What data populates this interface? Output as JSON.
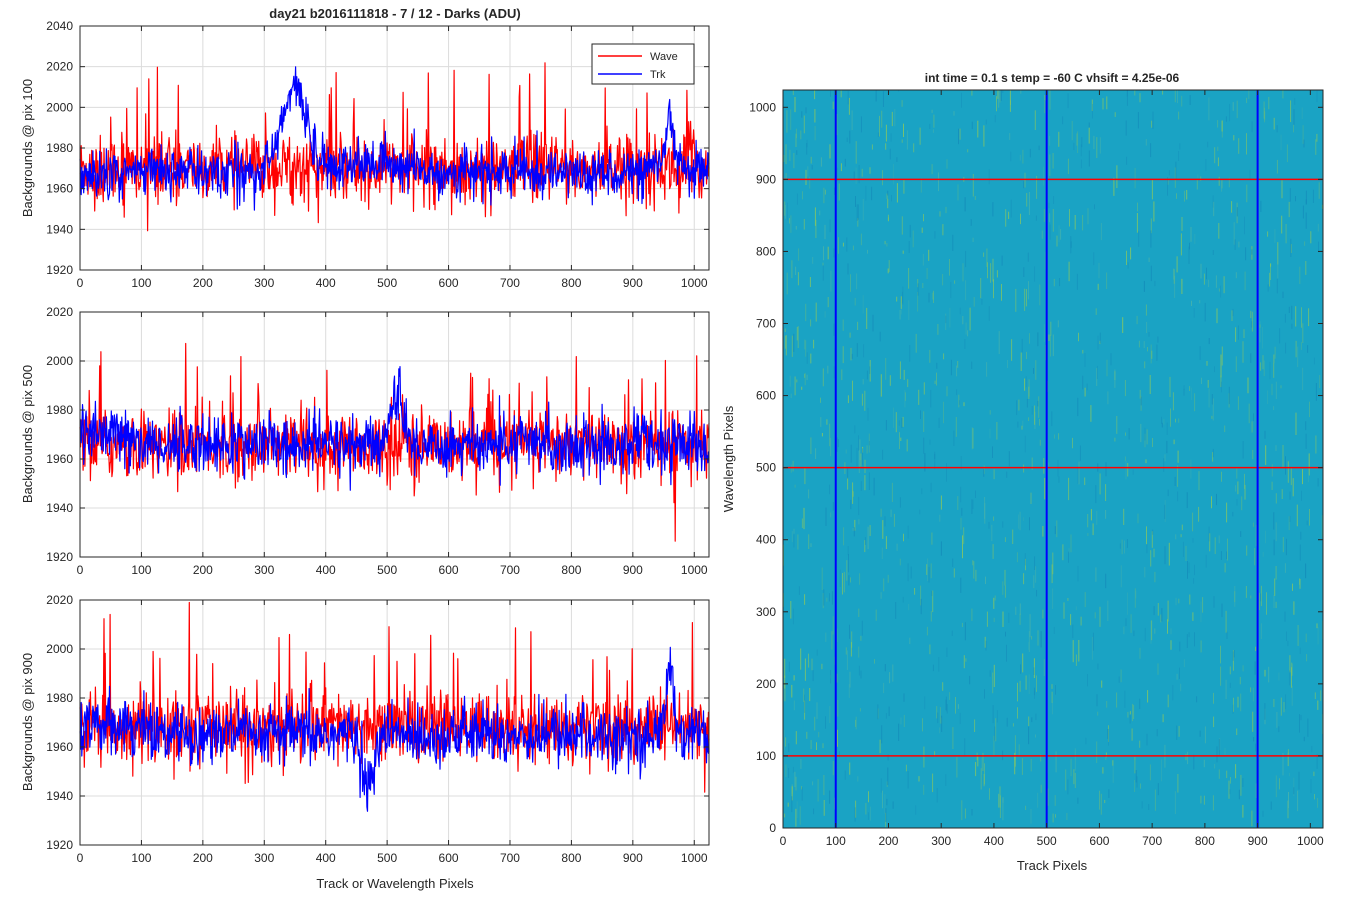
{
  "figure": {
    "title": "day21 b2016111818 - 7 / 12 - Darks (ADU)"
  },
  "chart_data": [
    {
      "type": "line",
      "title": "day21 b2016111818 - 7 / 12 - Darks (ADU)",
      "xlabel": "",
      "ylabel": "Backgrounds @ pix 100",
      "xlim": [
        0,
        1024
      ],
      "ylim": [
        1920,
        2040
      ],
      "xticks": [
        0,
        100,
        200,
        300,
        400,
        500,
        600,
        700,
        800,
        900,
        1000
      ],
      "yticks": [
        1920,
        1940,
        1960,
        1980,
        2000,
        2020,
        2040
      ],
      "grid": true,
      "legend": "top-right",
      "series": [
        {
          "name": "Wave",
          "color": "#ff0000",
          "mean": 1970,
          "sigma": 8,
          "spike_rate": 0.05,
          "spike_max": 45,
          "neg_rate": 0.02,
          "neg_max": 30,
          "bumps": []
        },
        {
          "name": "Trk",
          "color": "#0000ff",
          "mean": 1968,
          "sigma": 6,
          "spike_rate": 0.01,
          "spike_max": 10,
          "neg_rate": 0.01,
          "neg_max": 12,
          "bumps": [
            [
              350,
              30,
              40
            ],
            [
              960,
              10,
              28
            ],
            [
              480,
              60,
              4
            ]
          ]
        }
      ]
    },
    {
      "type": "line",
      "title": "",
      "xlabel": "",
      "ylabel": "Backgrounds @ pix 500",
      "xlim": [
        0,
        1024
      ],
      "ylim": [
        1920,
        2020
      ],
      "xticks": [
        0,
        100,
        200,
        300,
        400,
        500,
        600,
        700,
        800,
        900,
        1000
      ],
      "yticks": [
        1920,
        1940,
        1960,
        1980,
        2000,
        2020
      ],
      "grid": true,
      "legend": "none",
      "series": [
        {
          "name": "Wave",
          "color": "#ff0000",
          "mean": 1966,
          "sigma": 7,
          "spike_rate": 0.04,
          "spike_max": 35,
          "neg_rate": 0.02,
          "neg_max": 25,
          "bumps": []
        },
        {
          "name": "Trk",
          "color": "#0000ff",
          "mean": 1966,
          "sigma": 6,
          "spike_rate": 0.01,
          "spike_max": 12,
          "neg_rate": 0.01,
          "neg_max": 12,
          "bumps": [
            [
              515,
              14,
              18
            ],
            [
              40,
              40,
              4
            ]
          ]
        }
      ]
    },
    {
      "type": "line",
      "title": "",
      "xlabel": "Track or Wavelength Pixels",
      "ylabel": "Backgrounds @ pix 900",
      "xlim": [
        0,
        1024
      ],
      "ylim": [
        1920,
        2020
      ],
      "xticks": [
        0,
        100,
        200,
        300,
        400,
        500,
        600,
        700,
        800,
        900,
        1000
      ],
      "yticks": [
        1920,
        1940,
        1960,
        1980,
        2000,
        2020
      ],
      "grid": true,
      "legend": "none",
      "series": [
        {
          "name": "Wave",
          "color": "#ff0000",
          "mean": 1968,
          "sigma": 7,
          "spike_rate": 0.04,
          "spike_max": 40,
          "neg_rate": 0.02,
          "neg_max": 30,
          "bumps": []
        },
        {
          "name": "Trk",
          "color": "#0000ff",
          "mean": 1965,
          "sigma": 6,
          "spike_rate": 0.01,
          "spike_max": 12,
          "neg_rate": 0.01,
          "neg_max": 10,
          "bumps": [
            [
              470,
              12,
              -22
            ],
            [
              960,
              8,
              30
            ],
            [
              60,
              40,
              6
            ]
          ]
        }
      ]
    },
    {
      "type": "heatmap",
      "title": "int time = 0.1 s   temp = -60 C   vhsift = 4.25e-06",
      "xlabel": "Track Pixels",
      "ylabel": "Wavelength Pixels",
      "xlim": [
        0,
        1024
      ],
      "ylim": [
        0,
        1024
      ],
      "xticks": [
        0,
        100,
        200,
        300,
        400,
        500,
        600,
        700,
        800,
        900,
        1000
      ],
      "yticks": [
        0,
        100,
        200,
        300,
        400,
        500,
        600,
        700,
        800,
        900,
        1000
      ],
      "base_color": "#1aa3c4",
      "streak_color": "#8fc95a",
      "vertical_markers": [
        100,
        500,
        900
      ],
      "vertical_marker_color": "#0000ff",
      "horizontal_markers": [
        100,
        500,
        900
      ],
      "horizontal_marker_color": "#ff0000"
    }
  ]
}
